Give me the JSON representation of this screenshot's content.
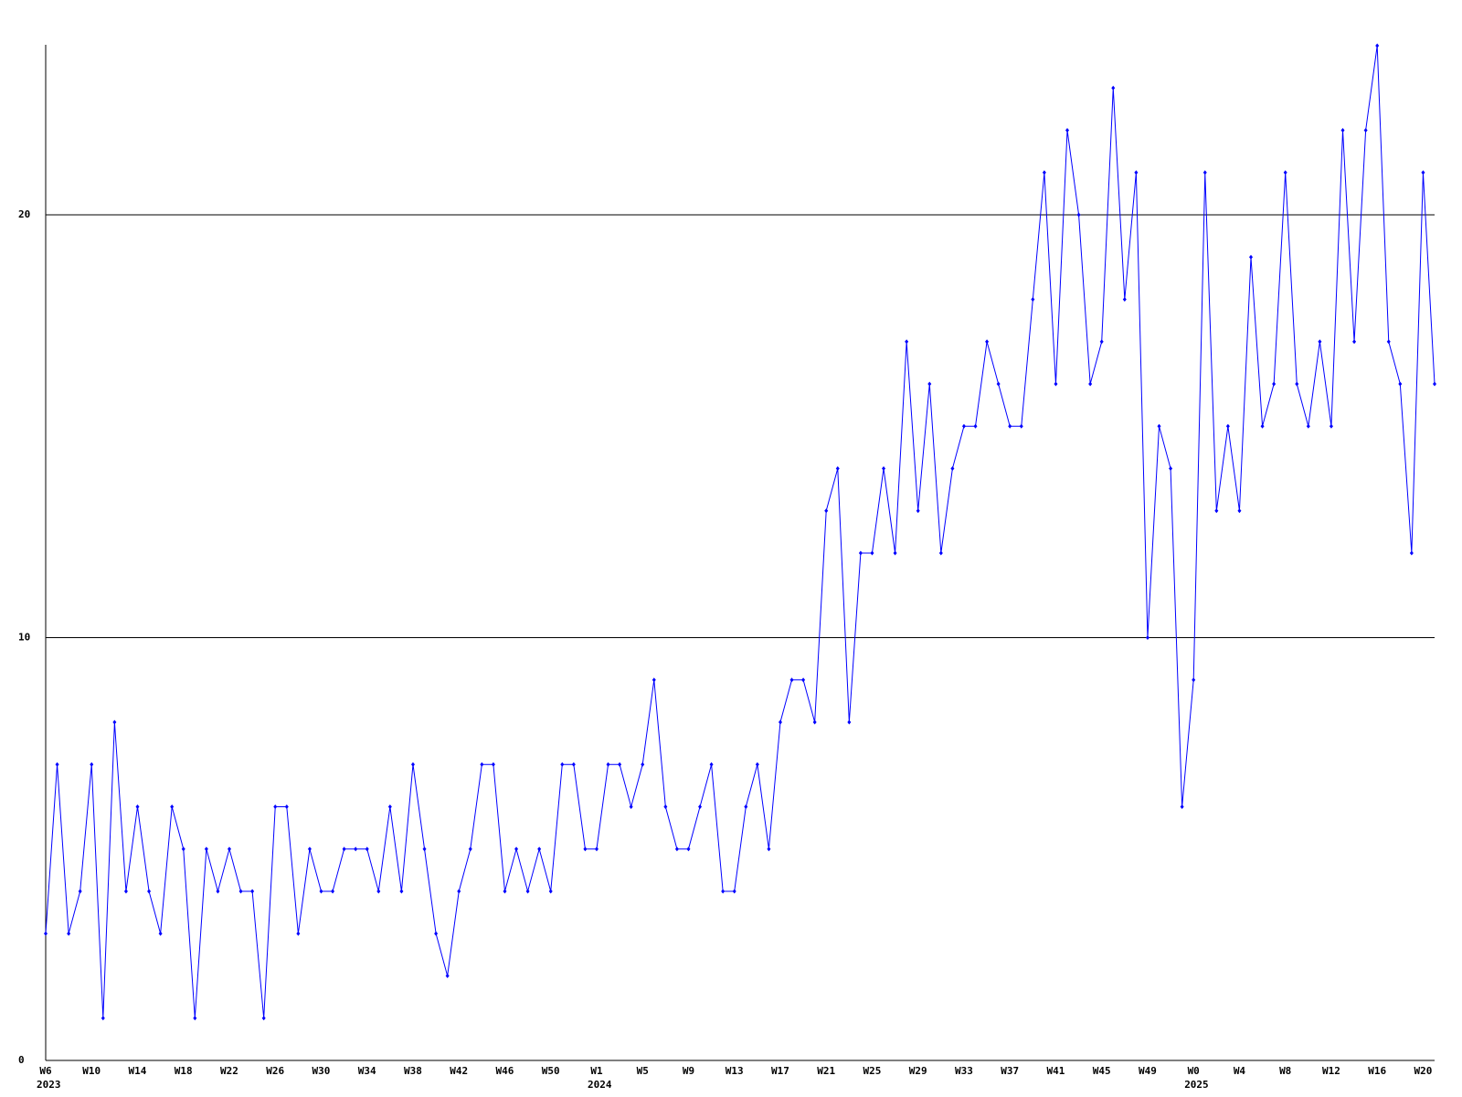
{
  "chart_data": {
    "type": "line",
    "color": "#0000ff",
    "grid": true,
    "ylim": [
      0,
      24
    ],
    "yticks": [
      0,
      10,
      20
    ],
    "categories": [
      "W6",
      null,
      null,
      null,
      "W10",
      null,
      null,
      null,
      "W14",
      null,
      null,
      null,
      "W18",
      null,
      null,
      null,
      "W22",
      null,
      null,
      null,
      "W26",
      null,
      null,
      null,
      "W30",
      null,
      null,
      null,
      "W34",
      null,
      null,
      null,
      "W38",
      null,
      null,
      null,
      "W42",
      null,
      null,
      null,
      "W46",
      null,
      null,
      null,
      "W50",
      null,
      null,
      null,
      "W1",
      null,
      null,
      null,
      "W5",
      null,
      null,
      null,
      "W9",
      null,
      null,
      null,
      "W13",
      null,
      null,
      null,
      "W17",
      null,
      null,
      null,
      "W21",
      null,
      null,
      null,
      "W25",
      null,
      null,
      null,
      "W29",
      null,
      null,
      null,
      "W33",
      null,
      null,
      null,
      "W37",
      null,
      null,
      null,
      "W41",
      null,
      null,
      null,
      "W45",
      null,
      null,
      null,
      "W49",
      null,
      null,
      null,
      "W0",
      null,
      null,
      null,
      "W4",
      null,
      null,
      null,
      "W8",
      null,
      null,
      null,
      "W12",
      null,
      null,
      null,
      "W16",
      null,
      null,
      null,
      "W20",
      null
    ],
    "category_years": [
      "2023",
      null,
      null,
      null,
      null,
      null,
      null,
      null,
      null,
      null,
      null,
      null,
      null,
      null,
      null,
      null,
      null,
      null,
      null,
      null,
      null,
      null,
      null,
      null,
      null,
      null,
      null,
      null,
      null,
      null,
      null,
      null,
      null,
      null,
      null,
      null,
      null,
      null,
      null,
      null,
      null,
      null,
      null,
      null,
      null,
      null,
      null,
      null,
      "2024",
      null,
      null,
      null,
      null,
      null,
      null,
      null,
      null,
      null,
      null,
      null,
      null,
      null,
      null,
      null,
      null,
      null,
      null,
      null,
      null,
      null,
      null,
      null,
      null,
      null,
      null,
      null,
      null,
      null,
      null,
      null,
      null,
      null,
      null,
      null,
      null,
      null,
      null,
      null,
      null,
      null,
      null,
      null,
      null,
      null,
      null,
      null,
      null,
      null,
      null,
      null,
      "2025",
      null,
      null,
      null,
      null,
      null,
      null,
      null,
      null,
      null,
      null,
      null,
      null,
      null,
      null,
      null,
      null,
      null,
      null,
      null,
      null,
      null
    ],
    "values": [
      3,
      7,
      3,
      4,
      7,
      1,
      8,
      4,
      6,
      4,
      3,
      6,
      5,
      1,
      5,
      4,
      5,
      4,
      4,
      1,
      6,
      6,
      3,
      5,
      4,
      4,
      5,
      5,
      5,
      4,
      6,
      4,
      7,
      5,
      3,
      2,
      4,
      5,
      7,
      7,
      4,
      5,
      4,
      5,
      4,
      7,
      7,
      5,
      5,
      7,
      7,
      6,
      7,
      9,
      6,
      5,
      5,
      6,
      7,
      4,
      4,
      6,
      7,
      5,
      8,
      9,
      9,
      8,
      13,
      14,
      8,
      12,
      12,
      14,
      12,
      17,
      13,
      16,
      12,
      14,
      15,
      15,
      17,
      16,
      15,
      15,
      18,
      21,
      16,
      22,
      20,
      16,
      17,
      23,
      18,
      21,
      10,
      15,
      14,
      6,
      9,
      21,
      13,
      15,
      13,
      19,
      15,
      16,
      21,
      16,
      15,
      17,
      15,
      22,
      17,
      22,
      24,
      17,
      16,
      12,
      21,
      16
    ]
  }
}
